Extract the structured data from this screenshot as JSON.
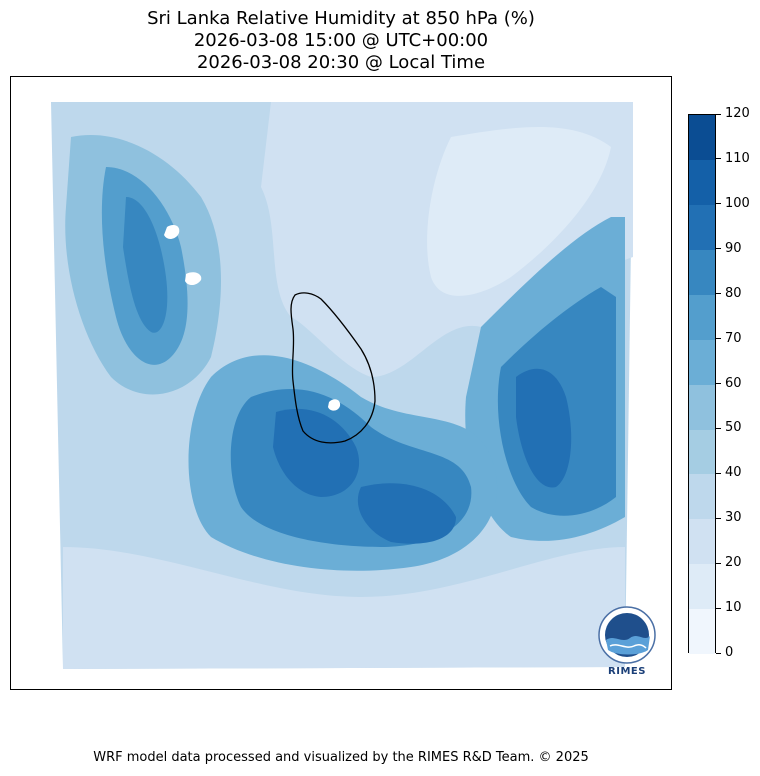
{
  "title": {
    "line1": "Sri Lanka Relative Humidity at 850 hPa (%)",
    "line2": "2026-03-08 15:00 @ UTC+00:00",
    "line3": "2026-03-08 20:30 @ Local Time"
  },
  "colorbar": {
    "ticks": [
      "0",
      "10",
      "20",
      "30",
      "40",
      "50",
      "60",
      "70",
      "80",
      "90",
      "100",
      "110",
      "120"
    ],
    "colors": [
      "#f0f6fd",
      "#deebf7",
      "#d0e1f2",
      "#bed8ec",
      "#a5cde3",
      "#8fc1de",
      "#6baed6",
      "#539ecd",
      "#3787c0",
      "#2270b4",
      "#1460a8",
      "#0b4d93",
      "#08306b"
    ]
  },
  "logo": {
    "text": "RIMES"
  },
  "footer": {
    "credit": "WRF model data processed and visualized by the RIMES R&D Team. © 2025"
  }
}
